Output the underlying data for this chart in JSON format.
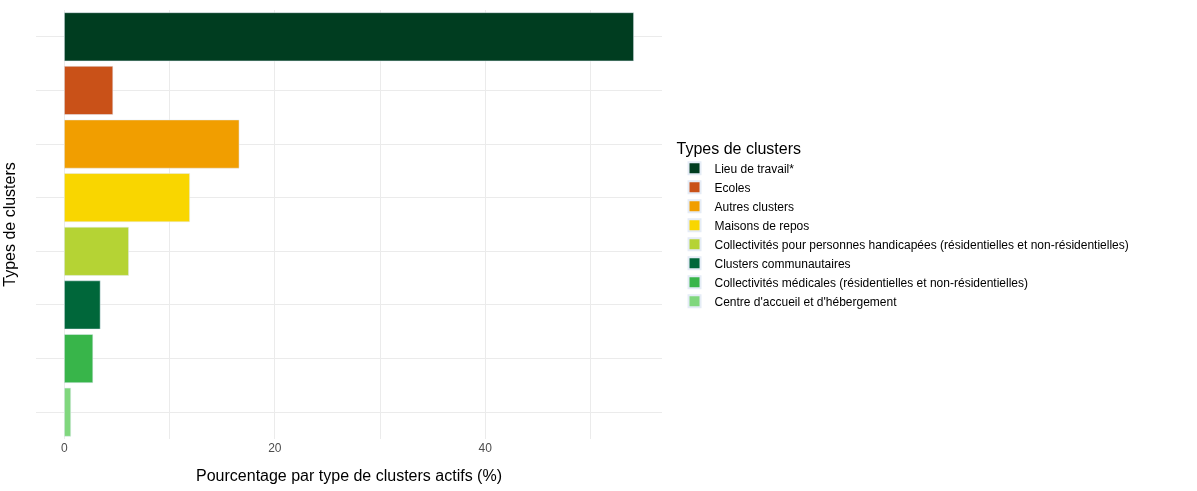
{
  "chart_data": {
    "type": "bar",
    "orientation": "horizontal",
    "xlabel": "Pourcentage par type de clusters actifs (%)",
    "ylabel": "Types de clusters",
    "legend_title": "Types de clusters",
    "categories": [
      null,
      null,
      null,
      null,
      null,
      null,
      null,
      null
    ],
    "series": [
      {
        "name": "Lieu de travail*",
        "color": "#003d20",
        "values": [
          54.1,
          null,
          null,
          null,
          null,
          null,
          null,
          null
        ]
      },
      {
        "name": "Ecoles",
        "color": "#c95118",
        "values": [
          null,
          4.6,
          null,
          null,
          null,
          null,
          null,
          null
        ]
      },
      {
        "name": "Autres clusters",
        "color": "#f19e00",
        "values": [
          null,
          null,
          16.6,
          null,
          null,
          null,
          null,
          null
        ]
      },
      {
        "name": "Maisons de repos",
        "color": "#f9d600",
        "values": [
          null,
          null,
          null,
          11.9,
          null,
          null,
          null,
          null
        ]
      },
      {
        "name": "Collectivités pour personnes handicapées (résidentielles et non-résidentielles)",
        "color": "#b5d334",
        "values": [
          null,
          null,
          null,
          null,
          6.1,
          null,
          null,
          null
        ]
      },
      {
        "name": "Clusters communautaires",
        "color": "#00673a",
        "values": [
          null,
          null,
          null,
          null,
          null,
          3.4,
          null,
          null
        ]
      },
      {
        "name": "Collectivités médicales (résidentielles et non-résidentielles)",
        "color": "#38b54a",
        "values": [
          null,
          null,
          null,
          null,
          null,
          null,
          2.7,
          null
        ]
      },
      {
        "name": "Centre d'accueil et d'hébergement",
        "color": "#80d77d",
        "values": [
          null,
          null,
          null,
          null,
          null,
          null,
          null,
          0.6
        ]
      }
    ],
    "xlim": [
      -2.7,
      56.8
    ],
    "xticks": [
      0,
      {
        "value": 10,
        "label": null
      },
      20,
      {
        "value": 30,
        "label": null
      },
      40,
      {
        "value": 50,
        "label": null
      }
    ],
    "grid": true,
    "legend": "right",
    "tick_labels": "x"
  }
}
